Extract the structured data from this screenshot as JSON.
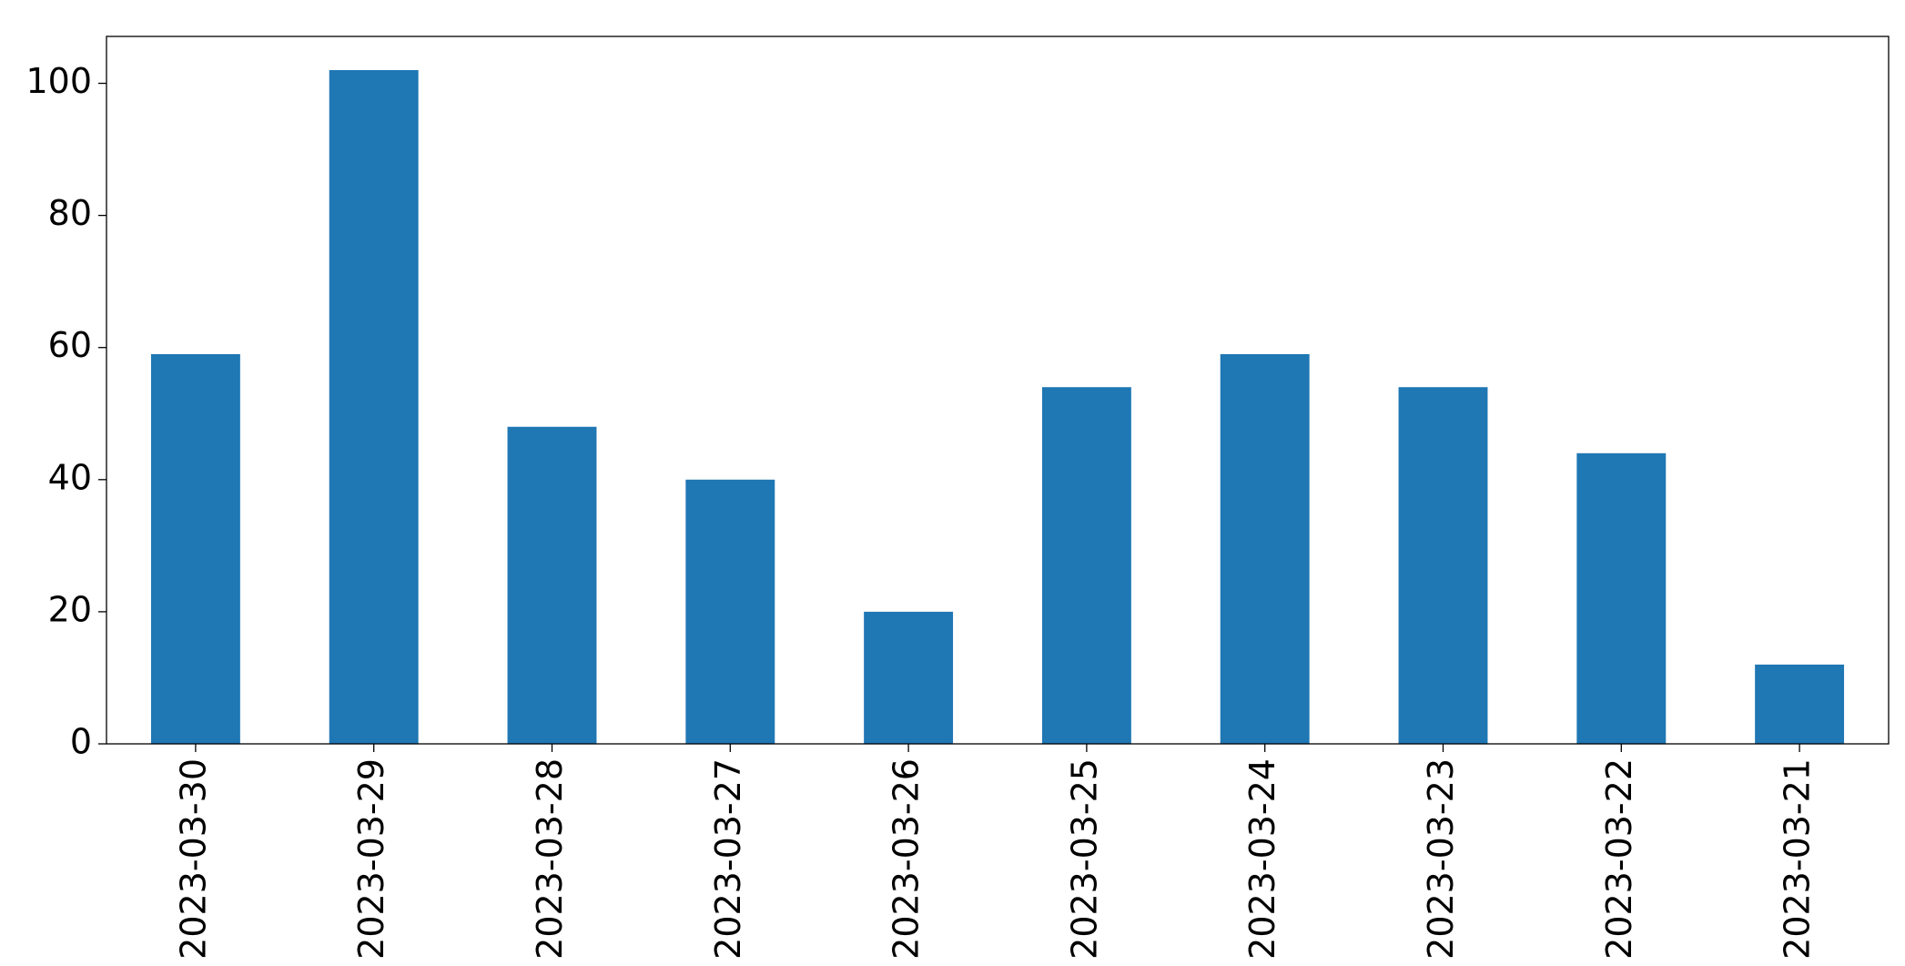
{
  "chart_data": {
    "type": "bar",
    "categories": [
      "2023-03-30",
      "2023-03-29",
      "2023-03-28",
      "2023-03-27",
      "2023-03-26",
      "2023-03-25",
      "2023-03-24",
      "2023-03-23",
      "2023-03-22",
      "2023-03-21"
    ],
    "values": [
      59,
      102,
      48,
      40,
      20,
      54,
      59,
      54,
      44,
      12
    ],
    "color": "#1f77b4",
    "ylim": [
      0,
      107.1
    ],
    "yticks": [
      0,
      20,
      40,
      60,
      80,
      100
    ],
    "grid": false
  }
}
